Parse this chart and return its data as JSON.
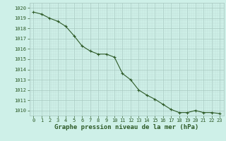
{
  "x": [
    0,
    1,
    2,
    3,
    4,
    5,
    6,
    7,
    8,
    9,
    10,
    11,
    12,
    13,
    14,
    15,
    16,
    17,
    18,
    19,
    20,
    21,
    22,
    23
  ],
  "y": [
    1019.6,
    1019.4,
    1019.0,
    1018.7,
    1018.2,
    1017.3,
    1016.3,
    1015.8,
    1015.5,
    1015.5,
    1015.2,
    1013.6,
    1013.0,
    1012.0,
    1011.5,
    1011.1,
    1010.6,
    1010.1,
    1009.8,
    1009.8,
    1010.0,
    1009.8,
    1009.8,
    1009.7
  ],
  "line_color": "#2d5a27",
  "marker": "+",
  "background_color": "#cef0e8",
  "grid_major_color": "#a8c8c0",
  "grid_minor_color": "#c0ddd8",
  "text_color": "#2d5a27",
  "xlabel": "Graphe pression niveau de la mer (hPa)",
  "ylim": [
    1009.5,
    1020.5
  ],
  "xlim": [
    -0.5,
    23.5
  ],
  "yticks": [
    1010,
    1011,
    1012,
    1013,
    1014,
    1015,
    1016,
    1017,
    1018,
    1019,
    1020
  ],
  "xticks": [
    0,
    1,
    2,
    3,
    4,
    5,
    6,
    7,
    8,
    9,
    10,
    11,
    12,
    13,
    14,
    15,
    16,
    17,
    18,
    19,
    20,
    21,
    22,
    23
  ],
  "tick_fontsize": 5.0,
  "xlabel_fontsize": 6.5,
  "linewidth": 0.8,
  "markersize": 3.5,
  "markeredgewidth": 0.8
}
